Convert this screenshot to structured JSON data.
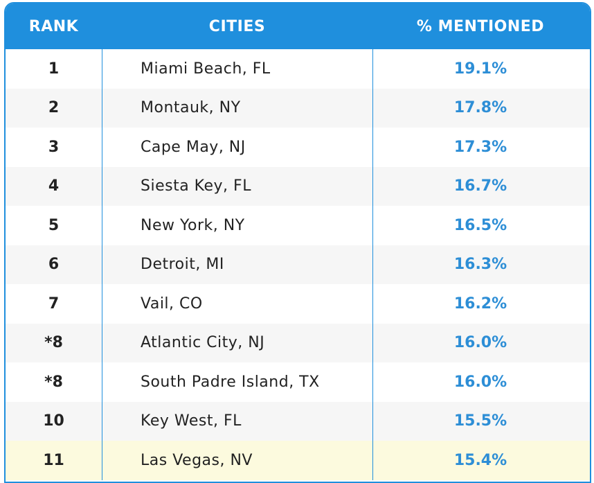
{
  "table": {
    "headers": {
      "rank": "RANK",
      "cities": "CITIES",
      "mentioned": "% MENTIONED"
    },
    "rows": [
      {
        "rank": "1",
        "city": "Miami Beach, FL",
        "pct": "19.1%"
      },
      {
        "rank": "2",
        "city": "Montauk, NY",
        "pct": "17.8%"
      },
      {
        "rank": "3",
        "city": "Cape May, NJ",
        "pct": "17.3%"
      },
      {
        "rank": "4",
        "city": "Siesta Key, FL",
        "pct": "16.7%"
      },
      {
        "rank": "5",
        "city": "New York, NY",
        "pct": "16.5%"
      },
      {
        "rank": "6",
        "city": "Detroit, MI",
        "pct": "16.3%"
      },
      {
        "rank": "7",
        "city": "Vail, CO",
        "pct": "16.2%"
      },
      {
        "rank": "*8",
        "city": "Atlantic City, NJ",
        "pct": "16.0%"
      },
      {
        "rank": "*8",
        "city": "South Padre Island, TX",
        "pct": "16.0%"
      },
      {
        "rank": "10",
        "city": "Key West, FL",
        "pct": "15.5%"
      },
      {
        "rank": "11",
        "city": "Las Vegas, NV",
        "pct": "15.4%"
      }
    ]
  },
  "colors": {
    "header_bg": "#1f8fdd",
    "percent_text": "#2d8ed6",
    "highlight_row": "#fcfade"
  }
}
